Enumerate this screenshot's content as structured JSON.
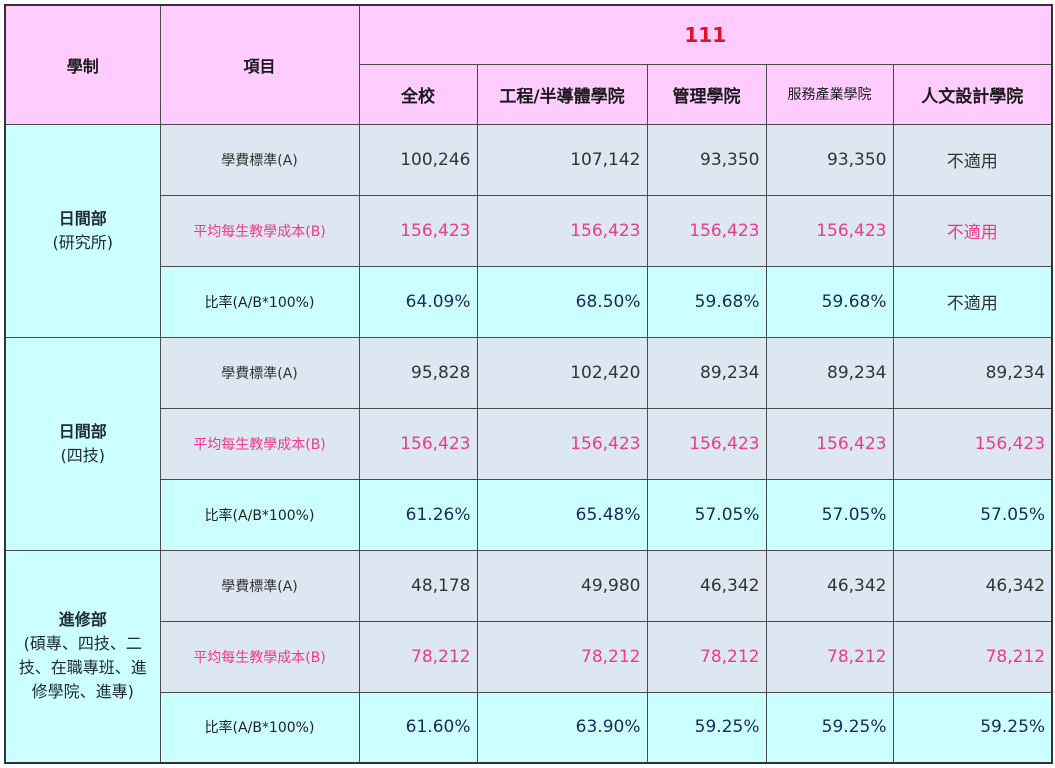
{
  "header": {
    "system_label": "學制",
    "item_label": "項目",
    "year": "111",
    "columns": [
      "全校",
      "工程/半導體學院",
      "管理學院",
      "服務產業學院",
      "人文設計學院"
    ]
  },
  "groups": [
    {
      "name": "日間部",
      "sub": "(研究所)",
      "rows": [
        {
          "label": "學費標準(A)",
          "values": [
            "100,246",
            "107,142",
            "93,350",
            "93,350",
            "不適用"
          ]
        },
        {
          "label": "平均每生教學成本(B)",
          "values": [
            "156,423",
            "156,423",
            "156,423",
            "156,423",
            "不適用"
          ]
        },
        {
          "label": "比率(A/B*100%)",
          "values": [
            "64.09%",
            "68.50%",
            "59.68%",
            "59.68%",
            "不適用"
          ]
        }
      ]
    },
    {
      "name": "日間部",
      "sub": "(四技)",
      "rows": [
        {
          "label": "學費標準(A)",
          "values": [
            "95,828",
            "102,420",
            "89,234",
            "89,234",
            "89,234"
          ]
        },
        {
          "label": "平均每生教學成本(B)",
          "values": [
            "156,423",
            "156,423",
            "156,423",
            "156,423",
            "156,423"
          ]
        },
        {
          "label": "比率(A/B*100%)",
          "values": [
            "61.26%",
            "65.48%",
            "57.05%",
            "57.05%",
            "57.05%"
          ]
        }
      ]
    },
    {
      "name": "進修部",
      "sub_lines": [
        "(碩專、四技、二",
        "技、在職專班、進",
        "修學院、進專)"
      ],
      "rows": [
        {
          "label": "學費標準(A)",
          "values": [
            "48,178",
            "49,980",
            "46,342",
            "46,342",
            "46,342"
          ]
        },
        {
          "label": "平均每生教學成本(B)",
          "values": [
            "78,212",
            "78,212",
            "78,212",
            "78,212",
            "78,212"
          ]
        },
        {
          "label": "比率(A/B*100%)",
          "values": [
            "61.60%",
            "63.90%",
            "59.25%",
            "59.25%",
            "59.25%"
          ]
        }
      ]
    }
  ]
}
